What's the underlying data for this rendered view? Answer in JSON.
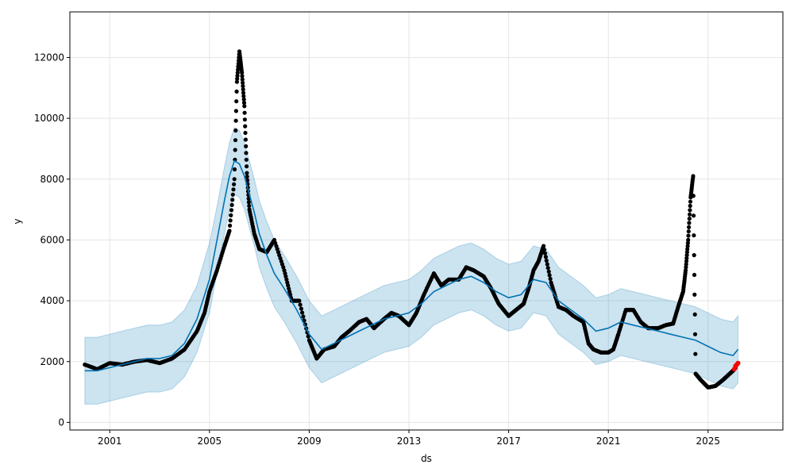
{
  "chart_data": {
    "type": "line",
    "title": "",
    "xlabel": "ds",
    "ylabel": "y",
    "xlim": [
      1999.4,
      2028.0
    ],
    "ylim": [
      -250,
      13500
    ],
    "grid": true,
    "x_ticks": [
      2001,
      2005,
      2009,
      2013,
      2017,
      2021,
      2025
    ],
    "x_tick_labels": [
      "2001",
      "2005",
      "2009",
      "2013",
      "2017",
      "2021",
      "2025"
    ],
    "y_ticks": [
      0,
      2000,
      4000,
      6000,
      8000,
      10000,
      12000
    ],
    "y_tick_labels": [
      "0",
      "2000",
      "4000",
      "6000",
      "8000",
      "10000",
      "12000"
    ],
    "colors": {
      "observed": "#000000",
      "forecast": "#0072B2",
      "uncertainty": "#0072B2",
      "recent": "#ff0000",
      "grid": "#e5e5e5"
    },
    "series": [
      {
        "kind": "observed-points",
        "x": [
          2000.0,
          2000.5,
          2001.0,
          2001.5,
          2002.0,
          2002.5,
          2003.0,
          2003.5,
          2004.0,
          2004.5,
          2004.8,
          2005.0,
          2005.3,
          2005.6,
          2005.8,
          2006.0,
          2006.1,
          2006.2,
          2006.3,
          2006.4,
          2006.5,
          2006.6,
          2006.8,
          2007.0,
          2007.3,
          2007.6,
          2008.0,
          2008.3,
          2008.6,
          2009.0,
          2009.3,
          2009.6,
          2010.0,
          2010.3,
          2010.6,
          2011.0,
          2011.3,
          2011.6,
          2012.0,
          2012.3,
          2012.6,
          2013.0,
          2013.3,
          2013.6,
          2014.0,
          2014.3,
          2014.6,
          2015.0,
          2015.3,
          2015.6,
          2016.0,
          2016.3,
          2016.6,
          2017.0,
          2017.3,
          2017.6,
          2017.8,
          2018.0,
          2018.2,
          2018.4,
          2018.7,
          2019.0,
          2019.3,
          2019.6,
          2020.0,
          2020.2,
          2020.4,
          2020.7,
          2021.0,
          2021.2,
          2021.4,
          2021.7,
          2022.0,
          2022.3,
          2022.6,
          2023.0,
          2023.3,
          2023.6,
          2023.8,
          2024.0,
          2024.1,
          2024.2,
          2024.3,
          2024.4,
          2024.5,
          2024.7,
          2025.0,
          2025.3,
          2025.6,
          2025.8,
          2026.0,
          2026.1
        ],
        "y": [
          1900,
          1750,
          1950,
          1900,
          2000,
          2050,
          1950,
          2100,
          2400,
          3000,
          3600,
          4300,
          5000,
          5800,
          6300,
          8000,
          11200,
          12200,
          11500,
          10400,
          8200,
          7000,
          6200,
          5700,
          5600,
          6000,
          5000,
          4000,
          4000,
          2700,
          2100,
          2400,
          2500,
          2800,
          3000,
          3300,
          3400,
          3100,
          3400,
          3600,
          3500,
          3200,
          3600,
          4200,
          4900,
          4500,
          4700,
          4700,
          5100,
          5000,
          4800,
          4400,
          3900,
          3500,
          3700,
          3900,
          4400,
          5000,
          5300,
          5800,
          4600,
          3800,
          3700,
          3500,
          3300,
          2600,
          2400,
          2300,
          2300,
          2400,
          2900,
          3700,
          3700,
          3300,
          3100,
          3100,
          3200,
          3250,
          3800,
          4300,
          5000,
          6000,
          7400,
          8100,
          1600,
          1400,
          1150,
          1200,
          1400,
          1550,
          1700,
          1800
        ]
      },
      {
        "kind": "recent-points",
        "x": [
          2026.05,
          2026.1,
          2026.15,
          2026.2
        ],
        "y": [
          1750,
          1850,
          1900,
          1950
        ]
      },
      {
        "kind": "forecast-line",
        "x": [
          2000.0,
          2000.5,
          2001.0,
          2001.5,
          2002.0,
          2002.5,
          2003.0,
          2003.5,
          2004.0,
          2004.5,
          2005.0,
          2005.3,
          2005.6,
          2005.8,
          2006.0,
          2006.2,
          2006.4,
          2006.6,
          2006.8,
          2007.0,
          2007.3,
          2007.6,
          2008.0,
          2008.5,
          2009.0,
          2009.5,
          2010.0,
          2010.5,
          2011.0,
          2011.5,
          2012.0,
          2012.5,
          2013.0,
          2013.5,
          2014.0,
          2014.5,
          2015.0,
          2015.5,
          2016.0,
          2016.5,
          2017.0,
          2017.5,
          2018.0,
          2018.5,
          2019.0,
          2019.5,
          2020.0,
          2020.5,
          2021.0,
          2021.5,
          2022.0,
          2022.5,
          2023.0,
          2023.5,
          2024.0,
          2024.5,
          2025.0,
          2025.5,
          2026.0,
          2026.2
        ],
        "y": [
          1700,
          1700,
          1800,
          1900,
          2000,
          2100,
          2100,
          2200,
          2600,
          3400,
          4700,
          6000,
          7300,
          8100,
          8600,
          8500,
          8100,
          7500,
          6900,
          6200,
          5500,
          4900,
          4400,
          3700,
          2900,
          2400,
          2600,
          2800,
          3000,
          3200,
          3400,
          3500,
          3600,
          3900,
          4300,
          4500,
          4700,
          4800,
          4600,
          4300,
          4100,
          4200,
          4700,
          4600,
          4000,
          3700,
          3400,
          3000,
          3100,
          3300,
          3200,
          3100,
          3000,
          2900,
          2800,
          2700,
          2500,
          2300,
          2200,
          2400
        ]
      },
      {
        "kind": "uncertainty-band",
        "x": [
          2000.0,
          2000.5,
          2001.0,
          2001.5,
          2002.0,
          2002.5,
          2003.0,
          2003.5,
          2004.0,
          2004.5,
          2005.0,
          2005.3,
          2005.6,
          2005.8,
          2006.0,
          2006.2,
          2006.4,
          2006.6,
          2006.8,
          2007.0,
          2007.3,
          2007.6,
          2008.0,
          2008.5,
          2009.0,
          2009.5,
          2010.0,
          2010.5,
          2011.0,
          2011.5,
          2012.0,
          2012.5,
          2013.0,
          2013.5,
          2014.0,
          2014.5,
          2015.0,
          2015.5,
          2016.0,
          2016.5,
          2017.0,
          2017.5,
          2018.0,
          2018.5,
          2019.0,
          2019.5,
          2020.0,
          2020.5,
          2021.0,
          2021.5,
          2022.0,
          2022.5,
          2023.0,
          2023.5,
          2024.0,
          2024.5,
          2025.0,
          2025.5,
          2026.0,
          2026.2
        ],
        "upper": [
          2800,
          2800,
          2900,
          3000,
          3100,
          3200,
          3200,
          3300,
          3700,
          4500,
          5900,
          7100,
          8400,
          9200,
          9700,
          9600,
          9200,
          8600,
          8000,
          7300,
          6600,
          6000,
          5500,
          4800,
          4000,
          3500,
          3700,
          3900,
          4100,
          4300,
          4500,
          4600,
          4700,
          5000,
          5400,
          5600,
          5800,
          5900,
          5700,
          5400,
          5200,
          5300,
          5800,
          5700,
          5100,
          4800,
          4500,
          4100,
          4200,
          4400,
          4300,
          4200,
          4100,
          4000,
          3900,
          3800,
          3600,
          3400,
          3300,
          3500
        ],
        "lower": [
          600,
          600,
          700,
          800,
          900,
          1000,
          1000,
          1100,
          1500,
          2300,
          3600,
          4900,
          6200,
          7000,
          7500,
          7400,
          7000,
          6400,
          5800,
          5100,
          4400,
          3800,
          3300,
          2600,
          1800,
          1300,
          1500,
          1700,
          1900,
          2100,
          2300,
          2400,
          2500,
          2800,
          3200,
          3400,
          3600,
          3700,
          3500,
          3200,
          3000,
          3100,
          3600,
          3500,
          2900,
          2600,
          2300,
          1900,
          2000,
          2200,
          2100,
          2000,
          1900,
          1800,
          1700,
          1600,
          1400,
          1200,
          1100,
          1300
        ]
      }
    ]
  }
}
